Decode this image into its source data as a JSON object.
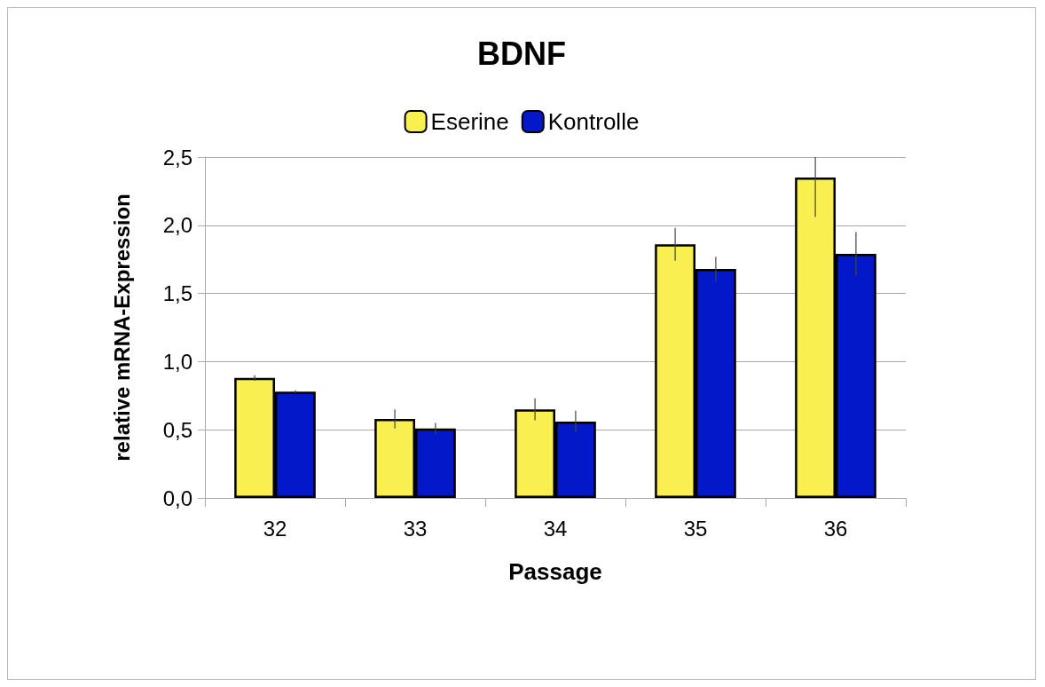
{
  "chart_data": {
    "type": "bar",
    "title": "BDNF",
    "xlabel": "Passage",
    "ylabel": "relative mRNA-Expression",
    "categories": [
      "32",
      "33",
      "34",
      "35",
      "36"
    ],
    "series": [
      {
        "name": "Eserine",
        "color": "#f9ef50",
        "values": [
          0.88,
          0.58,
          0.65,
          1.86,
          2.35
        ],
        "errors": [
          0.02,
          0.07,
          0.08,
          0.12,
          [
            2.06,
            2.5
          ]
        ]
      },
      {
        "name": "Kontrolle",
        "color": "#0318c8",
        "values": [
          0.78,
          0.51,
          0.56,
          1.68,
          1.79
        ],
        "errors": [
          0.01,
          0.04,
          0.08,
          0.09,
          0.16
        ]
      }
    ],
    "ylim": [
      0,
      2.5
    ],
    "yticks": [
      {
        "value": 0,
        "label": "0,0"
      },
      {
        "value": 0.5,
        "label": "0,5"
      },
      {
        "value": 1,
        "label": "1,0"
      },
      {
        "value": 1.5,
        "label": "1,5"
      },
      {
        "value": 2,
        "label": "2,0"
      },
      {
        "value": 2.5,
        "label": "2,5"
      }
    ],
    "grid": "y",
    "legend": "top"
  }
}
